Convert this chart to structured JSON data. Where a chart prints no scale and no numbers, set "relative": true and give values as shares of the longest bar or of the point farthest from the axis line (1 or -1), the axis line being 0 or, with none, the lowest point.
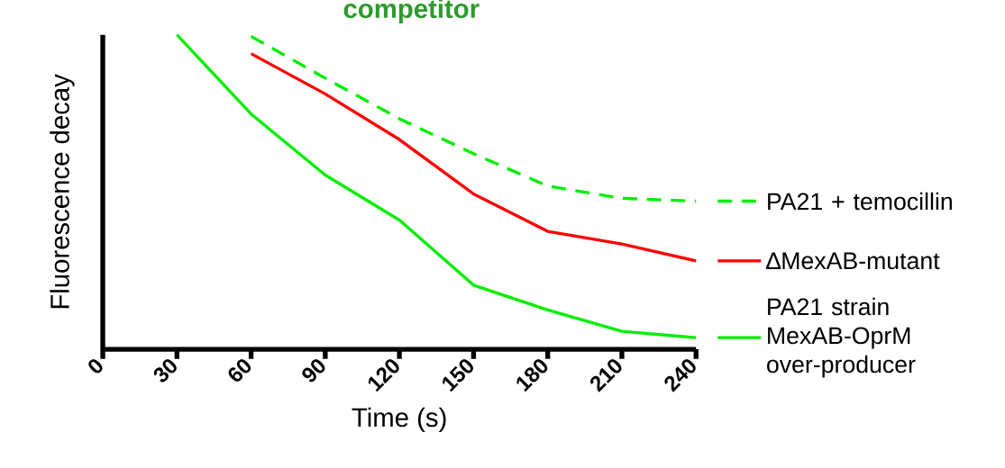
{
  "chart_data": {
    "type": "line",
    "title": "competitor",
    "xlabel": "Time (s)",
    "ylabel": "Fluorescence decay",
    "relative": true,
    "legend": "right",
    "x": [
      30,
      60,
      90,
      120,
      150,
      180,
      210,
      240
    ],
    "xlim": [
      0,
      240
    ],
    "xticks": [
      0,
      30,
      60,
      90,
      120,
      150,
      180,
      210,
      240
    ],
    "series": [
      {
        "name": "PA21 + temocillin",
        "color": "#00ee00",
        "line_style": "dashed",
        "values": [
          null,
          0.995,
          0.862,
          0.733,
          0.622,
          0.519,
          0.48,
          0.471
        ]
      },
      {
        "name": "∆MexAB-mutant",
        "color": "#ff0000",
        "line_style": "solid",
        "values": [
          null,
          0.94,
          0.812,
          0.667,
          0.494,
          0.375,
          0.335,
          0.281
        ]
      },
      {
        "name": "PA21 strain MexAB-OprM over-producer",
        "color": "#00ee00",
        "line_style": "solid",
        "values": [
          1.0,
          0.748,
          0.554,
          0.411,
          0.204,
          0.125,
          0.057,
          0.037
        ]
      }
    ]
  }
}
